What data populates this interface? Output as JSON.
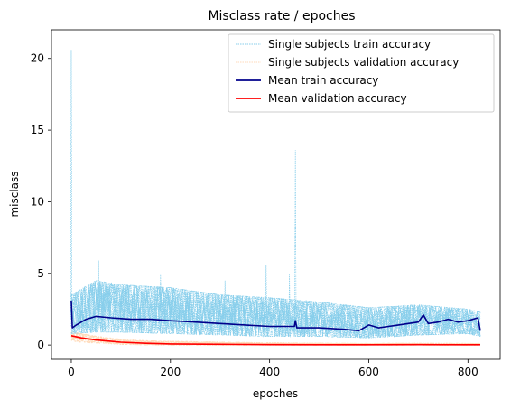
{
  "chart_data": {
    "type": "line",
    "title": "Misclass rate / epoches",
    "xlabel": "epoches",
    "ylabel": "misclass",
    "xlim": [
      -40,
      865
    ],
    "ylim": [
      -1,
      22
    ],
    "xticks": [
      0,
      200,
      400,
      600,
      800
    ],
    "yticks": [
      0,
      5,
      10,
      15,
      20
    ],
    "grid": false,
    "legend_position": "top-right",
    "legend": [
      {
        "label": "Single subjects train accuracy",
        "color": "#87ceeb",
        "style": "dotted"
      },
      {
        "label": "Single subjects validation accuracy",
        "color": "#ffdab9",
        "style": "dotted"
      },
      {
        "label": "Mean train accuracy",
        "color": "#00008b",
        "style": "solid"
      },
      {
        "label": "Mean validation accuracy",
        "color": "#ff0000",
        "style": "solid"
      }
    ],
    "series": [
      {
        "name": "Mean train accuracy",
        "color": "#00008b",
        "x": [
          0,
          2,
          10,
          30,
          50,
          80,
          120,
          160,
          200,
          250,
          300,
          350,
          400,
          450,
          452,
          455,
          500,
          550,
          580,
          600,
          620,
          640,
          660,
          680,
          700,
          710,
          720,
          740,
          760,
          780,
          800,
          820,
          825
        ],
        "y": [
          3.1,
          1.2,
          1.4,
          1.8,
          2.0,
          1.9,
          1.8,
          1.8,
          1.7,
          1.6,
          1.5,
          1.4,
          1.3,
          1.3,
          1.7,
          1.2,
          1.2,
          1.1,
          1.0,
          1.4,
          1.2,
          1.3,
          1.4,
          1.5,
          1.6,
          2.1,
          1.5,
          1.6,
          1.8,
          1.6,
          1.7,
          1.9,
          1.0
        ]
      },
      {
        "name": "Mean validation accuracy",
        "color": "#ff0000",
        "x": [
          0,
          20,
          50,
          100,
          150,
          200,
          300,
          400,
          500,
          600,
          700,
          800,
          825
        ],
        "y": [
          0.65,
          0.5,
          0.35,
          0.2,
          0.12,
          0.08,
          0.05,
          0.03,
          0.02,
          0.02,
          0.03,
          0.02,
          0.02
        ]
      },
      {
        "name": "Single subjects train accuracy",
        "color": "#87ceeb",
        "band_x": [
          0,
          50,
          100,
          200,
          300,
          400,
          500,
          600,
          700,
          800,
          825
        ],
        "band_low": [
          0.8,
          0.9,
          0.9,
          0.8,
          0.7,
          0.6,
          0.6,
          0.5,
          0.7,
          0.8,
          0.6
        ],
        "band_high": [
          3.5,
          4.5,
          4.2,
          4.0,
          3.5,
          3.3,
          3.0,
          2.6,
          2.8,
          2.5,
          2.3
        ],
        "spikes": [
          {
            "x": 0,
            "y": 20.6
          },
          {
            "x": 452,
            "y": 13.6
          },
          {
            "x": 55,
            "y": 5.9
          },
          {
            "x": 393,
            "y": 5.6
          },
          {
            "x": 440,
            "y": 5.0
          },
          {
            "x": 180,
            "y": 4.9
          },
          {
            "x": 310,
            "y": 4.5
          }
        ]
      },
      {
        "name": "Single subjects validation accuracy",
        "color": "#ffdab9",
        "band_x": [
          0,
          20,
          50,
          100,
          150,
          200,
          300,
          400,
          500,
          600,
          700,
          825
        ],
        "band_low": [
          0.3,
          0.2,
          0.15,
          0.05,
          0.02,
          0.0,
          0.0,
          0.0,
          0.0,
          0.0,
          0.0,
          0.0
        ],
        "band_high": [
          0.9,
          0.8,
          0.6,
          0.4,
          0.3,
          0.25,
          0.2,
          0.15,
          0.12,
          0.1,
          0.12,
          0.1
        ]
      }
    ]
  }
}
